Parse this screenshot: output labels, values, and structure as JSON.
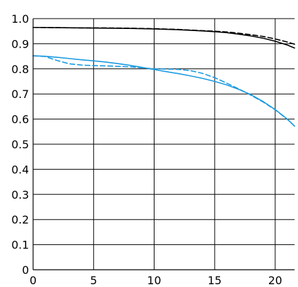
{
  "chart_data": {
    "type": "line",
    "title": "",
    "xlabel": "",
    "ylabel": "",
    "xlim": [
      0,
      21.6
    ],
    "ylim": [
      0,
      1.0
    ],
    "x_ticks": [
      0,
      5,
      10,
      15,
      20
    ],
    "x_tick_labels": [
      "0",
      "5",
      "10",
      "15",
      "20"
    ],
    "y_ticks": [
      0,
      0.1,
      0.2,
      0.3,
      0.4,
      0.5,
      0.6,
      0.7,
      0.8,
      0.9,
      1.0
    ],
    "y_tick_labels": [
      "0",
      "0.1",
      "0.2",
      "0.3",
      "0.4",
      "0.5",
      "0.6",
      "0.7",
      "0.8",
      "0.9",
      "1.0"
    ],
    "grid": true,
    "colors": {
      "black": "#000000",
      "blue": "#1a9ae0",
      "grid": "#000000"
    },
    "series": [
      {
        "color": "black",
        "dash": false,
        "x": [
          0,
          2,
          4,
          6,
          8,
          10,
          12,
          14,
          15,
          16,
          17,
          18,
          19,
          20,
          21,
          21.6
        ],
        "y": [
          0.965,
          0.964,
          0.963,
          0.962,
          0.961,
          0.959,
          0.956,
          0.951,
          0.948,
          0.944,
          0.938,
          0.931,
          0.922,
          0.91,
          0.895,
          0.883
        ]
      },
      {
        "color": "black",
        "dash": true,
        "x": [
          0,
          2,
          4,
          6,
          8,
          10,
          12,
          14,
          15,
          16,
          17,
          18,
          19,
          20,
          21,
          21.6
        ],
        "y": [
          0.965,
          0.964,
          0.963,
          0.963,
          0.962,
          0.96,
          0.957,
          0.952,
          0.95,
          0.947,
          0.942,
          0.936,
          0.929,
          0.919,
          0.907,
          0.898
        ]
      },
      {
        "color": "blue",
        "dash": false,
        "x": [
          0,
          1,
          2,
          3,
          4,
          5,
          6,
          7,
          8,
          9,
          10,
          11,
          12,
          13,
          14,
          15,
          16,
          17,
          18,
          19,
          20,
          21,
          21.6
        ],
        "y": [
          0.852,
          0.85,
          0.846,
          0.841,
          0.836,
          0.832,
          0.827,
          0.821,
          0.814,
          0.806,
          0.797,
          0.789,
          0.781,
          0.772,
          0.762,
          0.75,
          0.736,
          0.718,
          0.697,
          0.67,
          0.638,
          0.6,
          0.572
        ]
      },
      {
        "color": "blue",
        "dash": true,
        "x": [
          0,
          1,
          2,
          3,
          4,
          5,
          6,
          7,
          8,
          9,
          10,
          11,
          12,
          13,
          14,
          15,
          16,
          17,
          18,
          19,
          20,
          21,
          21.6
        ],
        "y": [
          0.852,
          0.849,
          0.833,
          0.82,
          0.815,
          0.813,
          0.812,
          0.81,
          0.808,
          0.804,
          0.8,
          0.799,
          0.798,
          0.793,
          0.782,
          0.765,
          0.743,
          0.72,
          0.695,
          0.668,
          0.637,
          0.599,
          0.572
        ]
      }
    ]
  }
}
